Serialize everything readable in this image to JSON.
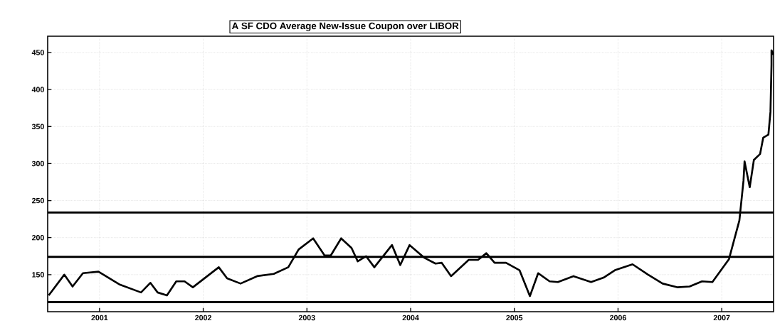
{
  "chart_data": {
    "type": "line",
    "title": "A SF CDO Average New-Issue Coupon over LIBOR",
    "x": [
      2000.51,
      2000.66,
      2000.74,
      2000.84,
      2000.99,
      2001.19,
      2001.4,
      2001.49,
      2001.56,
      2001.65,
      2001.74,
      2001.82,
      2001.9,
      2002.15,
      2002.23,
      2002.36,
      2002.52,
      2002.68,
      2002.82,
      2002.92,
      2003.06,
      2003.17,
      2003.23,
      2003.33,
      2003.43,
      2003.49,
      2003.57,
      2003.65,
      2003.82,
      2003.9,
      2003.99,
      2004.13,
      2004.24,
      2004.3,
      2004.39,
      2004.56,
      2004.65,
      2004.73,
      2004.81,
      2004.92,
      2005.05,
      2005.15,
      2005.23,
      2005.34,
      2005.42,
      2005.57,
      2005.74,
      2005.86,
      2005.97,
      2006.14,
      2006.29,
      2006.43,
      2006.57,
      2006.69,
      2006.81,
      2006.91,
      2007.07,
      2007.12,
      2007.17,
      2007.21,
      2007.22,
      2007.27,
      2007.31,
      2007.37,
      2007.4,
      2007.45,
      2007.47,
      2007.48,
      2007.48,
      2007.5
    ],
    "series": [
      {
        "color": "#000000",
        "values": [
          122,
          150,
          134,
          152,
          154,
          137,
          126,
          139,
          126,
          122,
          141,
          141,
          133,
          160,
          145,
          138,
          148,
          151,
          160,
          184,
          199,
          176,
          176,
          199,
          186,
          168,
          175,
          160,
          190,
          163,
          190,
          173,
          165,
          166,
          148,
          170,
          170,
          179,
          166,
          166,
          156,
          121,
          152,
          141,
          140,
          148,
          140,
          146,
          156,
          164,
          150,
          138,
          133,
          134,
          141,
          140,
          171,
          197,
          223,
          277,
          303,
          268,
          305,
          313,
          335,
          339,
          370,
          434,
          453,
          447
        ]
      }
    ],
    "xlim": [
      2000.5,
      2007.5
    ],
    "ylim": [
      100,
      472
    ],
    "xticks": [
      2001,
      2002,
      2003,
      2004,
      2005,
      2006,
      2007
    ],
    "yticks": [
      150,
      200,
      250,
      300,
      350,
      400,
      450
    ],
    "ref_lines": [
      {
        "axis": "y",
        "value": 234,
        "color": "#000000"
      },
      {
        "axis": "y",
        "value": 174,
        "color": "#000000"
      },
      {
        "axis": "y",
        "value": 113,
        "color": "#000000"
      }
    ],
    "grid": true,
    "marker": "none",
    "line_style": "solid"
  }
}
